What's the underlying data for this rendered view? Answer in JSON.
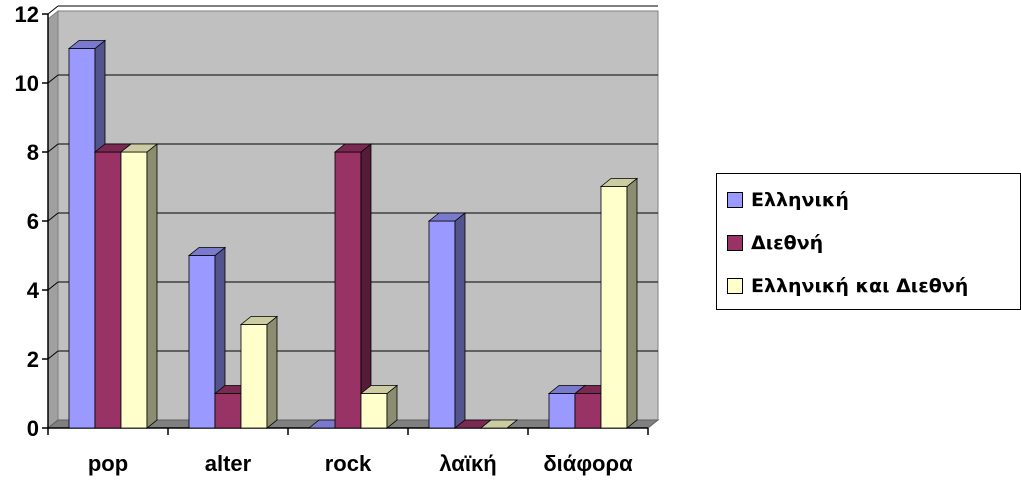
{
  "chart_data": {
    "type": "bar",
    "title": "",
    "xlabel": "",
    "ylabel": "",
    "categories": [
      "pop",
      "alter",
      "rock",
      "λαϊκή",
      "διάφορα"
    ],
    "series": [
      {
        "name": "Ελληνική",
        "values": [
          11,
          5,
          0,
          6,
          1
        ],
        "color": "#9999ff"
      },
      {
        "name": "Διεθνή",
        "values": [
          8,
          1,
          8,
          0,
          1
        ],
        "color": "#993366"
      },
      {
        "name": "Ελληνική και Διεθνή",
        "values": [
          8,
          3,
          1,
          0,
          7
        ],
        "color": "#ffffcc"
      }
    ],
    "ylim": [
      0,
      12
    ],
    "yticks": [
      "0",
      "2",
      "4",
      "6",
      "8",
      "10",
      "12"
    ],
    "grid": true,
    "legend_position": "right",
    "plot_background": "#c0c0c0"
  }
}
